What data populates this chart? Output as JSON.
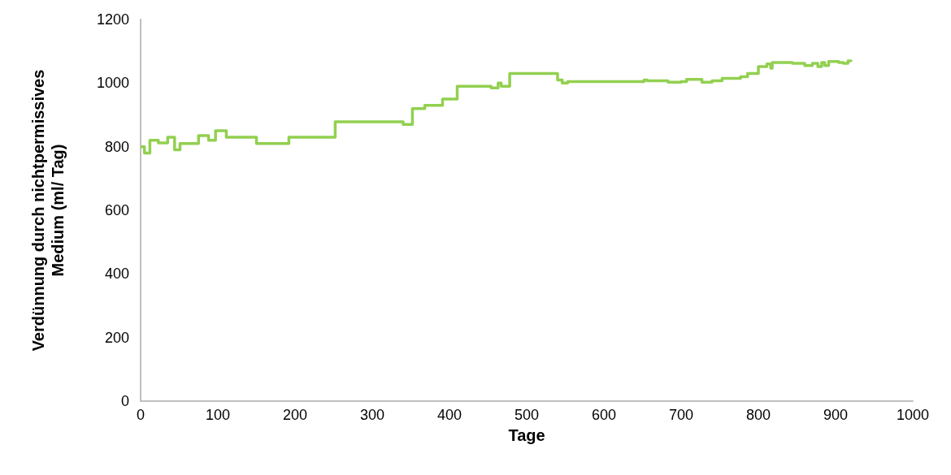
{
  "chart_data": {
    "type": "step",
    "xlabel": "Tage",
    "ylabel": "Verdünnung durch nichtpermissives\nMedium (ml/ Tag)",
    "color": "#92d050",
    "x": [
      0,
      5,
      12,
      23,
      35,
      44,
      51,
      75,
      88,
      97,
      111,
      150,
      192,
      252,
      340,
      352,
      368,
      391,
      410,
      454,
      463,
      467,
      478,
      540,
      546,
      553,
      652,
      656,
      683,
      700,
      707,
      727,
      740,
      753,
      777,
      786,
      800,
      811,
      816,
      818,
      844,
      860,
      870,
      877,
      882,
      886,
      891,
      904,
      910,
      916,
      920
    ],
    "values": [
      800,
      780,
      820,
      812,
      830,
      790,
      810,
      835,
      820,
      850,
      830,
      810,
      830,
      878,
      870,
      920,
      930,
      950,
      990,
      985,
      1000,
      990,
      1030,
      1010,
      1000,
      1005,
      1010,
      1007,
      1003,
      1005,
      1012,
      1003,
      1007,
      1015,
      1020,
      1030,
      1052,
      1060,
      1047,
      1065,
      1062,
      1055,
      1062,
      1052,
      1065,
      1055,
      1068,
      1065,
      1062,
      1070,
      1068
    ],
    "xlim": [
      0,
      1000
    ],
    "xticks": [
      0,
      100,
      200,
      300,
      400,
      500,
      600,
      700,
      800,
      900,
      1000
    ],
    "ylim": [
      0,
      1200
    ],
    "yticks": [
      0,
      200,
      400,
      600,
      800,
      1000,
      1200
    ]
  }
}
